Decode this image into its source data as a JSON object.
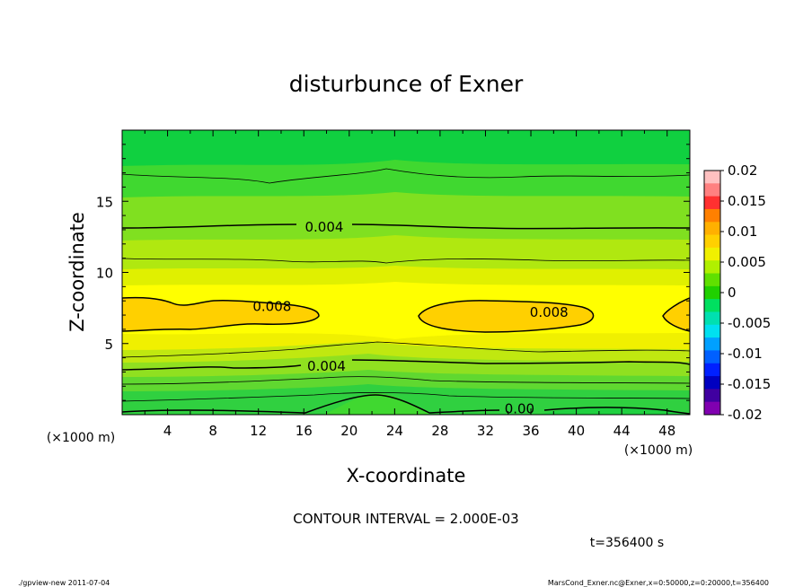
{
  "chart_data": {
    "type": "heatmap",
    "title": "disturbunce of Exner",
    "xlabel": "X-coordinate",
    "ylabel": "Z-coordinate",
    "x_unit_left": "(×1000 m)",
    "x_unit_right": "(×1000 m)",
    "xlim": [
      0,
      50
    ],
    "ylim": [
      0,
      20
    ],
    "x_ticks": [
      4,
      8,
      12,
      16,
      20,
      24,
      28,
      32,
      36,
      40,
      44,
      48
    ],
    "y_ticks": [
      5,
      10,
      15
    ],
    "colorbar": {
      "ticks": [
        "0.02",
        "0.015",
        "0.01",
        "0.005",
        "0",
        "-0.005",
        "-0.01",
        "-0.015",
        "-0.02"
      ],
      "range": [
        -0.02,
        0.02
      ],
      "colors": [
        "#ffc0c0",
        "#ff8080",
        "#ff3030",
        "#ff8000",
        "#ffb000",
        "#ffd000",
        "#f0f000",
        "#b0f000",
        "#60e000",
        "#20d000",
        "#00e060",
        "#00e0b0",
        "#00e0f0",
        "#00a0ff",
        "#0060ff",
        "#0020ff",
        "#0000c0",
        "#4000a0",
        "#8000b0"
      ]
    },
    "contour_labels": [
      {
        "text": "0.004",
        "x": 17.8,
        "z": 13.2
      },
      {
        "text": "0.008",
        "x": 13.2,
        "z": 7.6
      },
      {
        "text": "0.008",
        "x": 37.6,
        "z": 7.2
      },
      {
        "text": "0.004",
        "x": 18.0,
        "z": 3.4
      },
      {
        "text": "0.00",
        "x": 35.0,
        "z": 0.4
      }
    ],
    "contour_interval_text": "CONTOUR INTERVAL = 2.000E-03",
    "time_text": "t=356400 s"
  },
  "footer": {
    "left": "./gpview-new  2011-07-04",
    "right": "MarsCond_Exner.nc@Exner,x=0:50000,z=0:20000,t=356400"
  }
}
